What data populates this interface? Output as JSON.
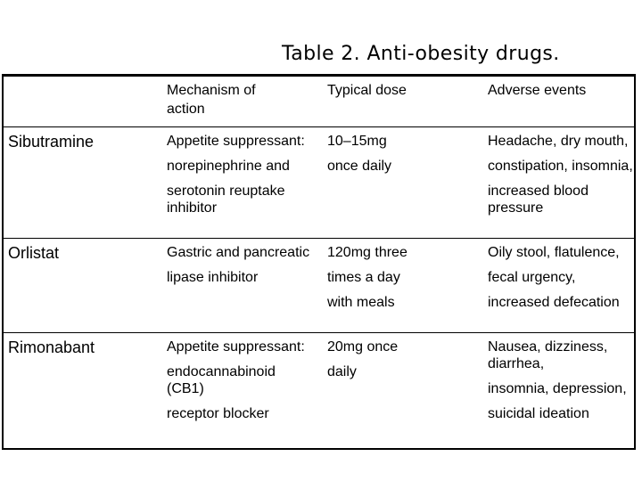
{
  "page": {
    "background_color": "#ffffff",
    "text_color": "#000000",
    "table_border_color": "#000000"
  },
  "title": "Table 2. Anti-obesity drugs.",
  "table": {
    "header": {
      "drug_column": "",
      "mechanism": [
        "Mechanism of",
        "action"
      ],
      "dose": [
        "Typical dose"
      ],
      "adverse": [
        "Adverse events"
      ]
    },
    "rows": [
      {
        "drug": "Sibutramine",
        "mechanism": [
          [
            "Appetite suppressant:"
          ],
          [
            "norepinephrine and"
          ],
          [
            "serotonin reuptake",
            "inhibitor"
          ]
        ],
        "dose": [
          [
            "10–15mg"
          ],
          [
            "once daily"
          ]
        ],
        "adverse": [
          [
            "Headache, dry mouth,"
          ],
          [
            "constipation, insomnia,"
          ],
          [
            "increased blood",
            "pressure"
          ]
        ]
      },
      {
        "drug": "Orlistat",
        "mechanism": [
          [
            "Gastric and pancreatic"
          ],
          [
            "lipase inhibitor"
          ]
        ],
        "dose": [
          [
            "120mg three"
          ],
          [
            "times a day"
          ],
          [
            "with meals"
          ]
        ],
        "adverse": [
          [
            "Oily stool, flatulence,"
          ],
          [
            "fecal urgency,"
          ],
          [
            "increased defecation"
          ]
        ]
      },
      {
        "drug": "Rimonabant",
        "mechanism": [
          [
            "Appetite suppressant:"
          ],
          [
            "endocannabinoid",
            "(CB1)"
          ],
          [
            "receptor blocker"
          ]
        ],
        "dose": [
          [
            "20mg once"
          ],
          [
            "daily"
          ]
        ],
        "adverse": [
          [
            "Nausea, dizziness,",
            "diarrhea,"
          ],
          [
            "insomnia, depression,"
          ],
          [
            "suicidal ideation"
          ]
        ]
      }
    ]
  }
}
